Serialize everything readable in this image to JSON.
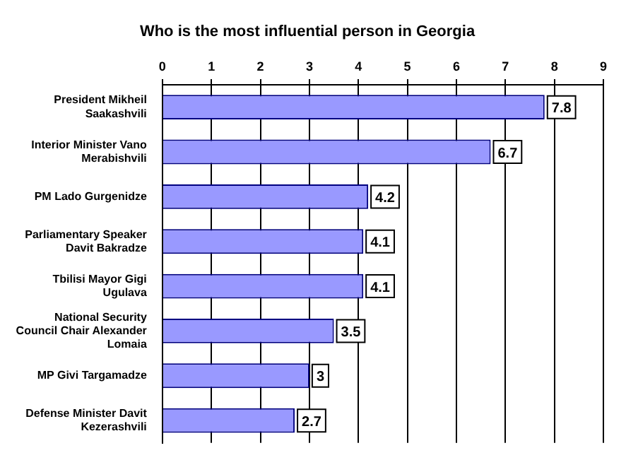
{
  "chart_data": {
    "type": "bar",
    "orientation": "horizontal",
    "title": "Who is the most influential person in Georgia",
    "categories": [
      "President Mikheil Saakashvili",
      "Interior Minister Vano Merabishvili",
      "PM Lado Gurgenidze",
      "Parliamentary Speaker Davit Bakradze",
      "Tbilisi Mayor Gigi Ugulava",
      "National Security Council Chair Alexander Lomaia",
      "MP Givi Targamadze",
      "Defense Minister Davit Kezerashvili"
    ],
    "values": [
      7.8,
      6.7,
      4.2,
      4.1,
      4.1,
      3.5,
      3,
      2.7
    ],
    "color": "#9999ff",
    "xlim": [
      0,
      9
    ],
    "xticks": [
      0,
      1,
      2,
      3,
      4,
      5,
      6,
      7,
      8,
      9
    ],
    "grid": "x",
    "data_labels": true
  }
}
